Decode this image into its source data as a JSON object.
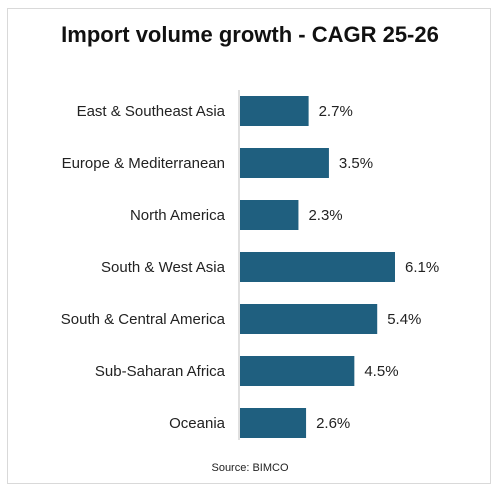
{
  "chart_data": {
    "type": "bar",
    "orientation": "horizontal",
    "title": "Import volume growth - CAGR 25-26",
    "categories": [
      "East & Southeast Asia",
      "Europe & Mediterranean",
      "North America",
      "South & West Asia",
      "South & Central America",
      "Sub-Saharan Africa",
      "Oceania"
    ],
    "values": [
      2.7,
      3.5,
      2.3,
      6.1,
      5.4,
      4.5,
      2.6
    ],
    "value_labels": [
      "2.7%",
      "3.5%",
      "2.3%",
      "6.1%",
      "5.4%",
      "4.5%",
      "2.6%"
    ],
    "unit": "%",
    "bar_color": "#1f5f7f",
    "grid": false,
    "source": "Source: BIMCO"
  }
}
